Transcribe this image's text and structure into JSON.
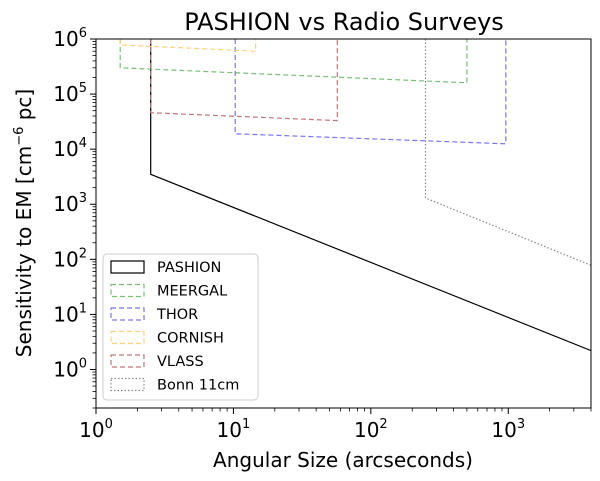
{
  "chart_data": {
    "type": "line",
    "title": "PASHION vs Radio Surveys",
    "xlabel": "Angular Size (arcseconds)",
    "ylabel_parts": [
      "Sensitivity to EM [cm",
      "−6",
      " pc]"
    ],
    "x_scale": "log",
    "y_scale": "log",
    "xlim": [
      1,
      4000
    ],
    "ylim": [
      0.2,
      1000000
    ],
    "x_ticks": [
      {
        "value": 1,
        "base": "10",
        "exp": "0"
      },
      {
        "value": 10,
        "base": "10",
        "exp": "1"
      },
      {
        "value": 100,
        "base": "10",
        "exp": "2"
      },
      {
        "value": 1000,
        "base": "10",
        "exp": "3"
      }
    ],
    "y_ticks": [
      {
        "value": 1,
        "base": "10",
        "exp": "0"
      },
      {
        "value": 10,
        "base": "10",
        "exp": "1"
      },
      {
        "value": 100,
        "base": "10",
        "exp": "2"
      },
      {
        "value": 1000,
        "base": "10",
        "exp": "3"
      },
      {
        "value": 10000,
        "base": "10",
        "exp": "4"
      },
      {
        "value": 100000,
        "base": "10",
        "exp": "5"
      },
      {
        "value": 1000000,
        "base": "10",
        "exp": "6"
      }
    ],
    "legend_position": "lower-left",
    "series": [
      {
        "name": "PASHION",
        "color": "#000000",
        "style": "solid",
        "points": [
          [
            2.5,
            1000000
          ],
          [
            2.5,
            3500
          ],
          [
            4000,
            2.2
          ]
        ]
      },
      {
        "name": "MEERGAL",
        "color": "#77c077",
        "style": "dashed",
        "points": [
          [
            1.5,
            1000000
          ],
          [
            1.5,
            300000
          ],
          [
            500,
            160000
          ],
          [
            500,
            1000000
          ]
        ]
      },
      {
        "name": "THOR",
        "color": "#7777ee",
        "style": "dashed",
        "points": [
          [
            10.3,
            1000000
          ],
          [
            10.3,
            19000
          ],
          [
            960,
            12500
          ],
          [
            960,
            1000000
          ]
        ]
      },
      {
        "name": "CORNISH",
        "color": "#ffce7f",
        "style": "dashed",
        "points": [
          [
            1.5,
            1000000
          ],
          [
            1.5,
            780000
          ],
          [
            14.5,
            600000
          ],
          [
            14.5,
            1000000
          ]
        ]
      },
      {
        "name": "VLASS",
        "color": "#c07777",
        "style": "dashed",
        "points": [
          [
            2.5,
            1000000
          ],
          [
            2.5,
            46000
          ],
          [
            57,
            33000
          ],
          [
            57,
            1000000
          ]
        ]
      },
      {
        "name": "Bonn 11cm",
        "color": "#888888",
        "style": "dotted",
        "points": [
          [
            250,
            1000000
          ],
          [
            250,
            1300
          ],
          [
            4000,
            78
          ]
        ]
      }
    ]
  }
}
